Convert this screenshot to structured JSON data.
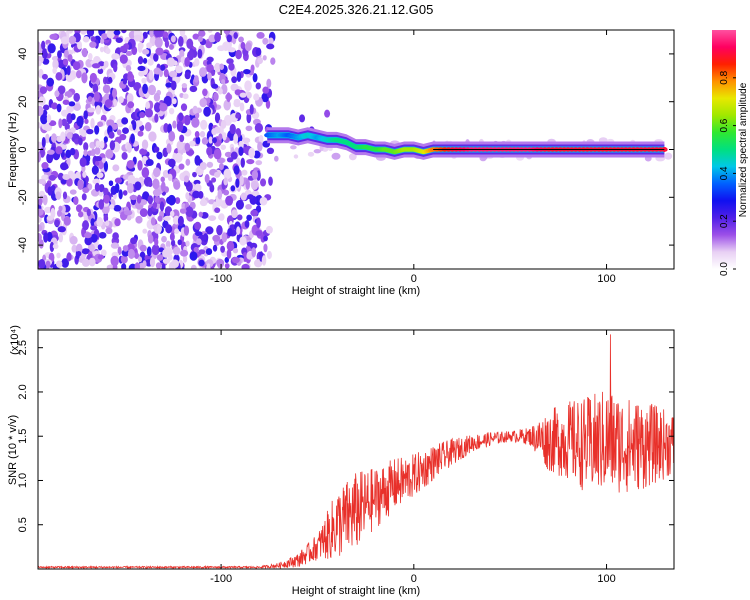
{
  "title": "C2E4.2025.326.21.12.G05",
  "colors": {
    "line": "#e8302a",
    "baseline": "#000000",
    "colormap": [
      "#ffffff",
      "#e8d0f4",
      "#9c50e8",
      "#5020e8",
      "#1010f0",
      "#0060ff",
      "#00c8e8",
      "#00e080",
      "#30e830",
      "#a0e800",
      "#e8e800",
      "#ff9000",
      "#ff2000",
      "#ff0060",
      "#ff50a0"
    ]
  },
  "chart_data": [
    {
      "type": "heatmap",
      "title": "",
      "xlabel": "Height of straight line (km)",
      "ylabel": "Frequency (Hz)",
      "xlim": [
        -195,
        135
      ],
      "ylim": [
        -50,
        50
      ],
      "x_ticks": [
        -100,
        0,
        100
      ],
      "x_tick_labels": [
        "-100",
        "0",
        "100"
      ],
      "y_ticks": [
        -40,
        -20,
        0,
        20,
        40
      ],
      "y_tick_labels": [
        "-40",
        "-20",
        "0",
        "20",
        "40"
      ],
      "colorbar": {
        "label": "Normalized spectral amplitude",
        "range": [
          0,
          1
        ],
        "ticks": [
          0.0,
          0.2,
          0.4,
          0.6,
          0.8
        ],
        "tick_labels": [
          "0.0",
          "0.2",
          "0.4",
          "0.6",
          "0.8"
        ]
      },
      "noise_region_x": [
        -195,
        -75
      ],
      "spectral_track": [
        {
          "x": -76,
          "f": 6,
          "amp": 0.35
        },
        {
          "x": -70,
          "f": 6,
          "amp": 0.4
        },
        {
          "x": -65,
          "f": 6,
          "amp": 0.35
        },
        {
          "x": -60,
          "f": 5,
          "amp": 0.4
        },
        {
          "x": -55,
          "f": 6,
          "amp": 0.45
        },
        {
          "x": -50,
          "f": 5,
          "amp": 0.4
        },
        {
          "x": -45,
          "f": 4,
          "amp": 0.45
        },
        {
          "x": -40,
          "f": 4,
          "amp": 0.5
        },
        {
          "x": -35,
          "f": 3,
          "amp": 0.5
        },
        {
          "x": -30,
          "f": 1,
          "amp": 0.5
        },
        {
          "x": -25,
          "f": 1,
          "amp": 0.55
        },
        {
          "x": -20,
          "f": 0,
          "amp": 0.55
        },
        {
          "x": -15,
          "f": 0,
          "amp": 0.6
        },
        {
          "x": -10,
          "f": -1,
          "amp": 0.6
        },
        {
          "x": -5,
          "f": 0,
          "amp": 0.65
        },
        {
          "x": 0,
          "f": 0,
          "amp": 0.65
        },
        {
          "x": 5,
          "f": -1,
          "amp": 0.7
        },
        {
          "x": 10,
          "f": 0,
          "amp": 0.8
        },
        {
          "x": 20,
          "f": 0,
          "amp": 0.9
        },
        {
          "x": 30,
          "f": 0,
          "amp": 0.95
        },
        {
          "x": 40,
          "f": 0,
          "amp": 0.95
        },
        {
          "x": 50,
          "f": 0,
          "amp": 0.95
        },
        {
          "x": 60,
          "f": 0,
          "amp": 0.95
        },
        {
          "x": 70,
          "f": 0,
          "amp": 0.9
        },
        {
          "x": 80,
          "f": 0,
          "amp": 0.9
        },
        {
          "x": 90,
          "f": 0,
          "amp": 0.9
        },
        {
          "x": 100,
          "f": 0,
          "amp": 0.9
        },
        {
          "x": 110,
          "f": 0,
          "amp": 0.9
        },
        {
          "x": 120,
          "f": 0,
          "amp": 0.9
        },
        {
          "x": 130,
          "f": 0,
          "amp": 0.9
        }
      ],
      "isolated_features": [
        {
          "x": -58,
          "f": 13,
          "amp": 0.2
        },
        {
          "x": -45,
          "f": 15,
          "amp": 0.15
        },
        {
          "x": -53,
          "f": 8,
          "amp": 0.2
        }
      ]
    },
    {
      "type": "line",
      "title": "",
      "xlabel": "Height of straight line (km)",
      "ylabel": "SNR (10 * v/v)",
      "y_multiplier": "(x10⁴)",
      "xlim": [
        -195,
        135
      ],
      "ylim": [
        0,
        2.7
      ],
      "x_ticks": [
        -100,
        0,
        100
      ],
      "x_tick_labels": [
        "-100",
        "0",
        "100"
      ],
      "y_ticks": [
        0.5,
        1.0,
        1.5,
        2.0,
        2.5
      ],
      "y_tick_labels": [
        "0.5",
        "1.0",
        "1.5",
        "2.0",
        "2.5"
      ],
      "series": [
        {
          "values_description_envelope": [
            {
              "x": -195,
              "mean": 0.02,
              "spread": 0.01
            },
            {
              "x": -80,
              "mean": 0.02,
              "spread": 0.01
            },
            {
              "x": -70,
              "mean": 0.04,
              "spread": 0.03
            },
            {
              "x": -60,
              "mean": 0.1,
              "spread": 0.08
            },
            {
              "x": -50,
              "mean": 0.25,
              "spread": 0.15
            },
            {
              "x": -40,
              "mean": 0.5,
              "spread": 0.4
            },
            {
              "x": -30,
              "mean": 0.65,
              "spread": 0.45
            },
            {
              "x": -20,
              "mean": 0.8,
              "spread": 0.35
            },
            {
              "x": -10,
              "mean": 0.95,
              "spread": 0.3
            },
            {
              "x": 0,
              "mean": 1.05,
              "spread": 0.25
            },
            {
              "x": 10,
              "mean": 1.2,
              "spread": 0.2
            },
            {
              "x": 20,
              "mean": 1.32,
              "spread": 0.15
            },
            {
              "x": 30,
              "mean": 1.42,
              "spread": 0.1
            },
            {
              "x": 40,
              "mean": 1.47,
              "spread": 0.08
            },
            {
              "x": 50,
              "mean": 1.5,
              "spread": 0.06
            },
            {
              "x": 60,
              "mean": 1.5,
              "spread": 0.1
            },
            {
              "x": 70,
              "mean": 1.45,
              "spread": 0.35
            },
            {
              "x": 80,
              "mean": 1.45,
              "spread": 0.45
            },
            {
              "x": 90,
              "mean": 1.4,
              "spread": 0.55
            },
            {
              "x": 100,
              "mean": 1.45,
              "spread": 0.6
            },
            {
              "x": 110,
              "mean": 1.4,
              "spread": 0.55
            },
            {
              "x": 120,
              "mean": 1.4,
              "spread": 0.5
            },
            {
              "x": 135,
              "mean": 1.42,
              "spread": 0.35
            }
          ],
          "peak": {
            "x": 102,
            "value": 2.65
          }
        }
      ]
    }
  ]
}
